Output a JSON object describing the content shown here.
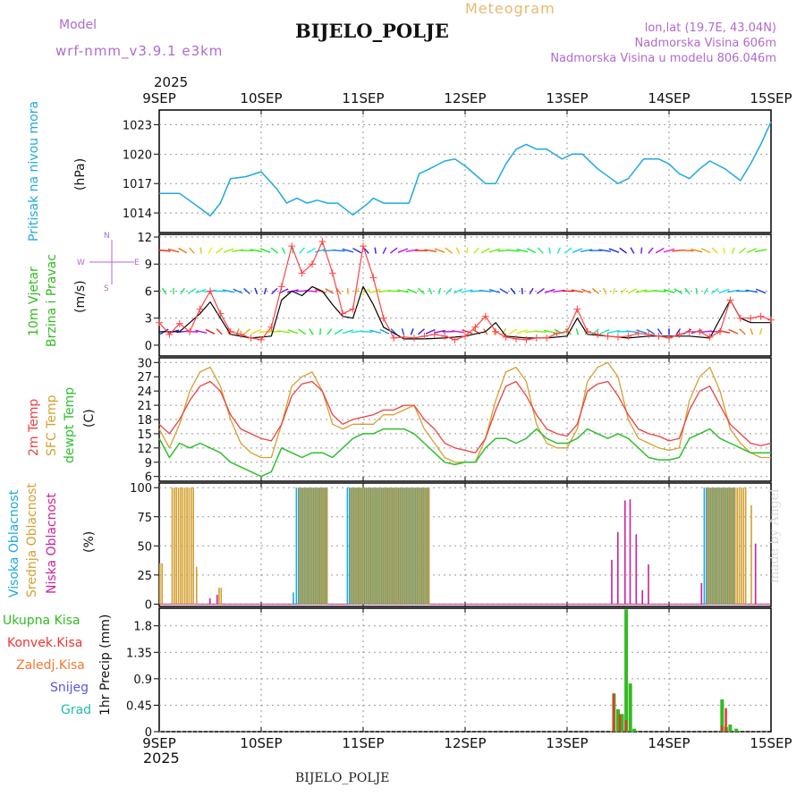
{
  "header": {
    "model_label": "Model",
    "model_value": "wrf-nmm_v3.9.1  e3km",
    "meteogram": "Meteogram",
    "station": "BIJELO_POLJE",
    "lonlat": "lon,lat (19.7E, 43.04N)",
    "altitude": "Nadmorska Visina 606m",
    "model_altitude": "Nadmorska Visina u modelu 806.046m",
    "footer_station": "BIJELO_POLJE",
    "credit": "made by Angel"
  },
  "colors": {
    "pressure": "#1fa9e1",
    "wind_speed": "#ff4444",
    "wind_mean": "#000000",
    "temp2m": "#ef4040",
    "sfc": "#d4a030",
    "dew": "#2fbf2f",
    "high": "#1fa9e1",
    "mid": "#d4a030",
    "low": "#cc2299",
    "rain": "#33bb22",
    "conv": "#ee3333",
    "snow": "#5555ee",
    "label_purple": "#b06ad0",
    "label_orange": "#e8b870"
  },
  "chart_data": [
    {
      "type": "line",
      "id": "pressure",
      "title": "Pritisak na nivou mora",
      "ylabel": "(hPa)",
      "yticks": [
        1014,
        1017,
        1020,
        1023
      ],
      "ylim": [
        1012,
        1024.5
      ],
      "x_unit": "day since 9SEP 00UTC",
      "series": [
        {
          "name": "MSLP",
          "color_key": "pressure",
          "x": [
            0,
            0.2,
            0.4,
            0.5,
            0.6,
            0.7,
            0.85,
            1.0,
            1.15,
            1.25,
            1.35,
            1.45,
            1.55,
            1.65,
            1.75,
            1.9,
            2.05,
            2.1,
            2.2,
            2.35,
            2.45,
            2.55,
            2.65,
            2.8,
            2.9,
            3.0,
            3.2,
            3.3,
            3.4,
            3.5,
            3.6,
            3.7,
            3.8,
            3.95,
            4.05,
            4.15,
            4.3,
            4.5,
            4.6,
            4.75,
            4.9,
            5.0,
            5.1,
            5.2,
            5.3,
            5.4,
            5.55,
            5.7,
            5.8,
            5.9,
            6.0
          ],
          "y": [
            1016,
            1016,
            1014.5,
            1013.7,
            1015,
            1017.5,
            1017.7,
            1018.2,
            1016.5,
            1015,
            1015.5,
            1015,
            1015.3,
            1015,
            1015,
            1013.8,
            1015,
            1015.5,
            1015,
            1015,
            1015,
            1018,
            1018.5,
            1019.3,
            1019.5,
            1018.8,
            1017,
            1017,
            1019,
            1020.5,
            1021,
            1020.5,
            1020.5,
            1019.5,
            1020,
            1020,
            1018.5,
            1017,
            1017.5,
            1019.5,
            1019.5,
            1019,
            1018,
            1017.5,
            1018.5,
            1019.3,
            1018.5,
            1017.3,
            1019,
            1021,
            1023.3
          ]
        }
      ]
    },
    {
      "type": "line",
      "id": "wind",
      "title": "10m Vjetar",
      "title2": "Brzina i Pravac",
      "ylabel": "(m/s)",
      "compass": [
        "N",
        "S",
        "W",
        "E"
      ],
      "yticks": [
        0,
        3,
        6,
        9,
        12
      ],
      "ylim": [
        -1.2,
        12.3
      ],
      "series": [
        {
          "name": "gust",
          "color_key": "wind_speed",
          "x": [
            0,
            0.1,
            0.2,
            0.3,
            0.4,
            0.5,
            0.6,
            0.7,
            0.8,
            0.9,
            1.0,
            1.1,
            1.2,
            1.3,
            1.4,
            1.5,
            1.6,
            1.7,
            1.8,
            1.9,
            2.0,
            2.1,
            2.2,
            2.3,
            2.4,
            2.5,
            2.6,
            2.7,
            2.8,
            2.9,
            3.0,
            3.1,
            3.2,
            3.3,
            3.4,
            3.5,
            3.6,
            3.7,
            3.8,
            3.9,
            4.0,
            4.1,
            4.2,
            4.3,
            4.4,
            4.5,
            4.6,
            4.7,
            4.8,
            4.9,
            5.0,
            5.1,
            5.2,
            5.3,
            5.4,
            5.5,
            5.6,
            5.7,
            5.8,
            5.9,
            6.0
          ],
          "y": [
            2.5,
            1.2,
            2.4,
            1.5,
            4.0,
            6.0,
            3.5,
            1.5,
            1.2,
            0.8,
            0.6,
            2.0,
            6.5,
            11.0,
            8.0,
            9.0,
            11.5,
            8.0,
            3.5,
            4.0,
            11.0,
            7.5,
            3.0,
            0.8,
            0.9,
            0.8,
            1.0,
            1.2,
            1.0,
            0.6,
            1.0,
            2.0,
            3.2,
            1.5,
            0.9,
            0.7,
            0.6,
            0.8,
            0.8,
            1.3,
            1.5,
            4.0,
            1.5,
            1.2,
            1.0,
            0.9,
            1.0,
            1.3,
            1.2,
            1.0,
            0.8,
            1.2,
            1.5,
            1.5,
            0.9,
            1.5,
            5.0,
            3.0,
            3.0,
            3.2,
            2.8
          ]
        },
        {
          "name": "mean",
          "color_key": "wind_mean",
          "x": [
            0,
            0.2,
            0.4,
            0.5,
            0.6,
            0.7,
            0.9,
            1.1,
            1.2,
            1.3,
            1.4,
            1.5,
            1.6,
            1.7,
            1.8,
            1.9,
            2.0,
            2.1,
            2.2,
            2.4,
            2.6,
            2.8,
            3.0,
            3.2,
            3.3,
            3.4,
            3.6,
            3.8,
            4.0,
            4.1,
            4.2,
            4.4,
            4.6,
            4.8,
            5.0,
            5.2,
            5.4,
            5.6,
            5.7,
            5.8,
            6.0
          ],
          "y": [
            1.5,
            1.5,
            3.5,
            4.8,
            3.0,
            1.2,
            0.8,
            1.0,
            5.0,
            6.0,
            5.5,
            6.5,
            6.0,
            4.5,
            3.2,
            3.0,
            6.5,
            4.5,
            2.0,
            0.7,
            0.7,
            0.8,
            1.0,
            1.5,
            2.5,
            1.0,
            0.8,
            0.8,
            1.0,
            3.0,
            1.2,
            1.0,
            0.8,
            1.0,
            1.0,
            1.0,
            0.8,
            5.0,
            3.0,
            2.5,
            2.5
          ]
        }
      ]
    },
    {
      "type": "line",
      "id": "temp",
      "title_2m": "2m Temp",
      "title_sfc": "SFC Temp",
      "title_dew": "dewpt Temp",
      "ylabel": "(C)",
      "yticks": [
        6,
        9,
        12,
        15,
        18,
        21,
        24,
        27,
        30
      ],
      "ylim": [
        5,
        31
      ],
      "series": [
        {
          "name": "2m Temp",
          "color_key": "temp2m",
          "x": [
            0,
            0.1,
            0.2,
            0.3,
            0.4,
            0.5,
            0.6,
            0.7,
            0.8,
            0.9,
            1.0,
            1.1,
            1.2,
            1.3,
            1.4,
            1.5,
            1.6,
            1.7,
            1.8,
            1.9,
            2.0,
            2.1,
            2.2,
            2.3,
            2.4,
            2.5,
            2.6,
            2.7,
            2.8,
            2.9,
            3.0,
            3.1,
            3.2,
            3.3,
            3.4,
            3.5,
            3.6,
            3.7,
            3.8,
            3.9,
            4.0,
            4.1,
            4.2,
            4.3,
            4.4,
            4.5,
            4.6,
            4.7,
            4.8,
            4.9,
            5.0,
            5.1,
            5.2,
            5.3,
            5.4,
            5.5,
            5.6,
            5.7,
            5.8,
            5.9,
            6.0
          ],
          "y": [
            17,
            15,
            18,
            22,
            25,
            26,
            24,
            19,
            16,
            15,
            14,
            13.5,
            17,
            23,
            25.5,
            26,
            24,
            19,
            17,
            18,
            18.5,
            19,
            20,
            20,
            21,
            21,
            18,
            16,
            13,
            12,
            11.5,
            11,
            14,
            20,
            25,
            26,
            23,
            19,
            16,
            15,
            14.5,
            17,
            24,
            25.5,
            26,
            23,
            19,
            16,
            15,
            14.5,
            13.5,
            14,
            20,
            24,
            25,
            21,
            17,
            15,
            13,
            12.5,
            13
          ]
        },
        {
          "name": "SFC Temp",
          "color_key": "sfc",
          "x": [
            0,
            0.1,
            0.2,
            0.3,
            0.4,
            0.5,
            0.6,
            0.7,
            0.8,
            0.9,
            1.0,
            1.1,
            1.2,
            1.3,
            1.4,
            1.5,
            1.6,
            1.7,
            1.8,
            1.9,
            2.0,
            2.1,
            2.2,
            2.3,
            2.4,
            2.5,
            2.6,
            2.7,
            2.8,
            2.9,
            3.0,
            3.1,
            3.2,
            3.3,
            3.4,
            3.5,
            3.6,
            3.7,
            3.8,
            3.9,
            4.0,
            4.1,
            4.2,
            4.3,
            4.4,
            4.5,
            4.6,
            4.7,
            4.8,
            4.9,
            5.0,
            5.1,
            5.2,
            5.3,
            5.4,
            5.5,
            5.6,
            5.7,
            5.8,
            5.9,
            6.0
          ],
          "y": [
            16,
            12,
            17,
            24,
            28,
            29,
            25,
            18,
            13,
            11,
            10,
            10,
            17,
            25,
            27,
            28,
            24,
            17,
            16,
            17,
            17,
            17,
            19,
            19,
            20,
            21,
            16,
            13,
            10,
            9,
            9,
            9,
            14,
            22,
            28,
            29,
            26,
            17,
            13,
            12,
            12,
            16,
            26,
            29,
            30,
            27,
            18,
            14,
            13,
            12,
            11.5,
            12,
            22,
            27,
            29,
            24,
            16,
            13,
            11,
            10,
            10
          ]
        },
        {
          "name": "dewpt Temp",
          "color_key": "dew",
          "x": [
            0,
            0.1,
            0.2,
            0.3,
            0.4,
            0.5,
            0.6,
            0.7,
            0.8,
            0.9,
            1.0,
            1.1,
            1.2,
            1.3,
            1.4,
            1.5,
            1.6,
            1.7,
            1.8,
            1.9,
            2.0,
            2.1,
            2.2,
            2.3,
            2.4,
            2.5,
            2.6,
            2.7,
            2.8,
            2.9,
            3.0,
            3.1,
            3.2,
            3.3,
            3.4,
            3.5,
            3.6,
            3.7,
            3.8,
            3.9,
            4.0,
            4.1,
            4.2,
            4.3,
            4.4,
            4.5,
            4.6,
            4.7,
            4.8,
            4.9,
            5.0,
            5.1,
            5.2,
            5.3,
            5.4,
            5.5,
            5.6,
            5.7,
            5.8,
            5.9,
            6.0
          ],
          "y": [
            14,
            10,
            13,
            12,
            13,
            12,
            11,
            9,
            8,
            7,
            6,
            7,
            12,
            11,
            10,
            11,
            11,
            10,
            12,
            14,
            15,
            15,
            16,
            16,
            16,
            15,
            13,
            11,
            9,
            8.5,
            9,
            9,
            12,
            14,
            14,
            13,
            14,
            16,
            14,
            13,
            13,
            14,
            16,
            15,
            14,
            15,
            14,
            12,
            10,
            9.5,
            9.5,
            10,
            14,
            15,
            16,
            14,
            13,
            12,
            11,
            11,
            11
          ]
        }
      ]
    },
    {
      "type": "bar",
      "id": "cloud",
      "title_high": "Visoka Oblacnost",
      "title_mid": "Srednja Oblacnost",
      "title_low": "Niska Oblacnost",
      "ylabel": "(%)",
      "yticks": [
        0,
        25,
        50,
        75,
        100
      ],
      "ylim": [
        -2,
        104
      ],
      "bar_step_days": 0.0208,
      "series": [
        {
          "name": "Visoka",
          "color_key": "high",
          "segments": [
            {
              "from": 1.35,
              "to": 1.65,
              "value": 100
            },
            {
              "from": 1.85,
              "to": 2.65,
              "value": 100
            },
            {
              "from": 5.35,
              "to": 5.65,
              "value": 100
            },
            {
              "from": 1.32,
              "to": 1.34,
              "value": 10
            }
          ]
        },
        {
          "name": "Srednja",
          "color_key": "mid",
          "segments": [
            {
              "from": 0.0,
              "to": 0.04,
              "value": 35
            },
            {
              "from": 0.12,
              "to": 0.33,
              "value": 100
            },
            {
              "from": 0.36,
              "to": 0.38,
              "value": 32
            },
            {
              "from": 0.58,
              "to": 0.62,
              "value": 14
            },
            {
              "from": 1.37,
              "to": 1.65,
              "value": 100
            },
            {
              "from": 1.87,
              "to": 2.65,
              "value": 100
            },
            {
              "from": 5.37,
              "to": 5.75,
              "value": 100
            },
            {
              "from": 5.8,
              "to": 5.82,
              "value": 85
            }
          ]
        },
        {
          "name": "Niska",
          "color_key": "low",
          "segments": [
            {
              "from": 0.48,
              "to": 0.5,
              "value": 5
            },
            {
              "from": 0.55,
              "to": 0.57,
              "value": 8
            },
            {
              "from": 4.42,
              "to": 4.44,
              "value": 38
            },
            {
              "from": 4.48,
              "to": 4.5,
              "value": 62
            },
            {
              "from": 4.55,
              "to": 4.57,
              "value": 89
            },
            {
              "from": 4.6,
              "to": 4.62,
              "value": 90
            },
            {
              "from": 4.66,
              "to": 4.68,
              "value": 60
            },
            {
              "from": 4.72,
              "to": 4.74,
              "value": 12
            },
            {
              "from": 4.78,
              "to": 4.8,
              "value": 34
            },
            {
              "from": 5.3,
              "to": 5.32,
              "value": 18
            },
            {
              "from": 5.83,
              "to": 5.85,
              "value": 52
            }
          ]
        }
      ]
    },
    {
      "type": "bar",
      "id": "precip",
      "labels": [
        "Ukupna Kisa",
        "Konvek.Kisa",
        "Zaledj.Kisa",
        "Snijeg",
        "Grad"
      ],
      "ylabel": "1hr Precip (mm)",
      "yticks": [
        0,
        0.45,
        0.9,
        1.35,
        1.8
      ],
      "ylim": [
        0,
        2.1
      ],
      "series": [
        {
          "name": "Ukupna Kisa",
          "color_key": "rain",
          "x": [
            4.46,
            4.5,
            4.54,
            4.58,
            4.62,
            4.66,
            5.52,
            5.56,
            5.6,
            5.66
          ],
          "y": [
            0.65,
            0.38,
            0.3,
            2.08,
            0.82,
            0.05,
            0.55,
            0.08,
            0.12,
            0.05
          ]
        },
        {
          "name": "Konvek.Kisa",
          "color_key": "conv",
          "x": [
            4.44,
            4.5,
            4.56,
            5.5,
            5.54
          ],
          "y": [
            0.65,
            0.3,
            0.2,
            0.1,
            0.4
          ]
        }
      ]
    }
  ],
  "axis": {
    "top_year": "2025",
    "bottom_year": "2025",
    "days": [
      "9SEP",
      "10SEP",
      "11SEP",
      "12SEP",
      "13SEP",
      "14SEP",
      "15SEP"
    ]
  }
}
